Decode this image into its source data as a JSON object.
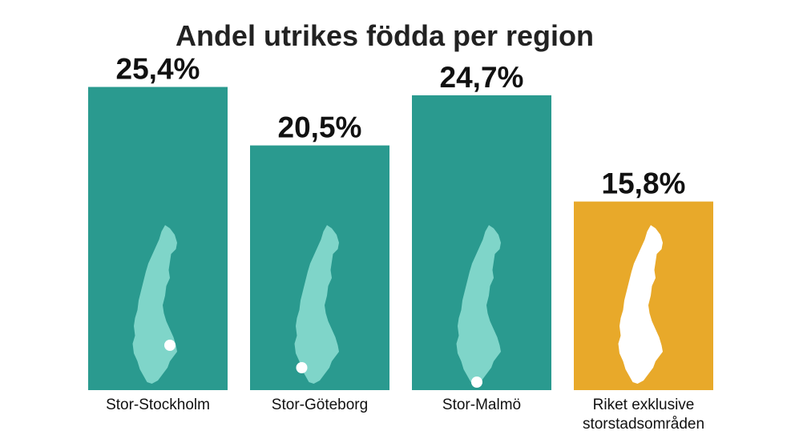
{
  "chart_data": {
    "type": "bar",
    "title": "Andel utrikes födda per region",
    "categories": [
      "Stor-Stockholm",
      "Stor-Göteborg",
      "Stor-Malmö",
      "Riket exklusive storstadsområden"
    ],
    "category_lines": [
      [
        "Stor-Stockholm"
      ],
      [
        "Stor-Göteborg"
      ],
      [
        "Stor-Malmö"
      ],
      [
        "Riket exklusive",
        "storstadsområden"
      ]
    ],
    "values": [
      25.4,
      20.5,
      24.7,
      15.8
    ],
    "value_labels": [
      "25,4%",
      "20,5%",
      "24,7%",
      "15,8%"
    ],
    "bar_colors": [
      "#2a9a8f",
      "#2a9a8f",
      "#2a9a8f",
      "#e8a92a"
    ],
    "map_colors": [
      "#7fd5c9",
      "#7fd5c9",
      "#7fd5c9",
      "#ffffff"
    ],
    "marker_color": "#ffffff",
    "markers": [
      "Stockholm",
      "Göteborg",
      "Malmö",
      null
    ],
    "ylim": [
      0,
      30
    ],
    "grid": false,
    "legend": "none"
  }
}
